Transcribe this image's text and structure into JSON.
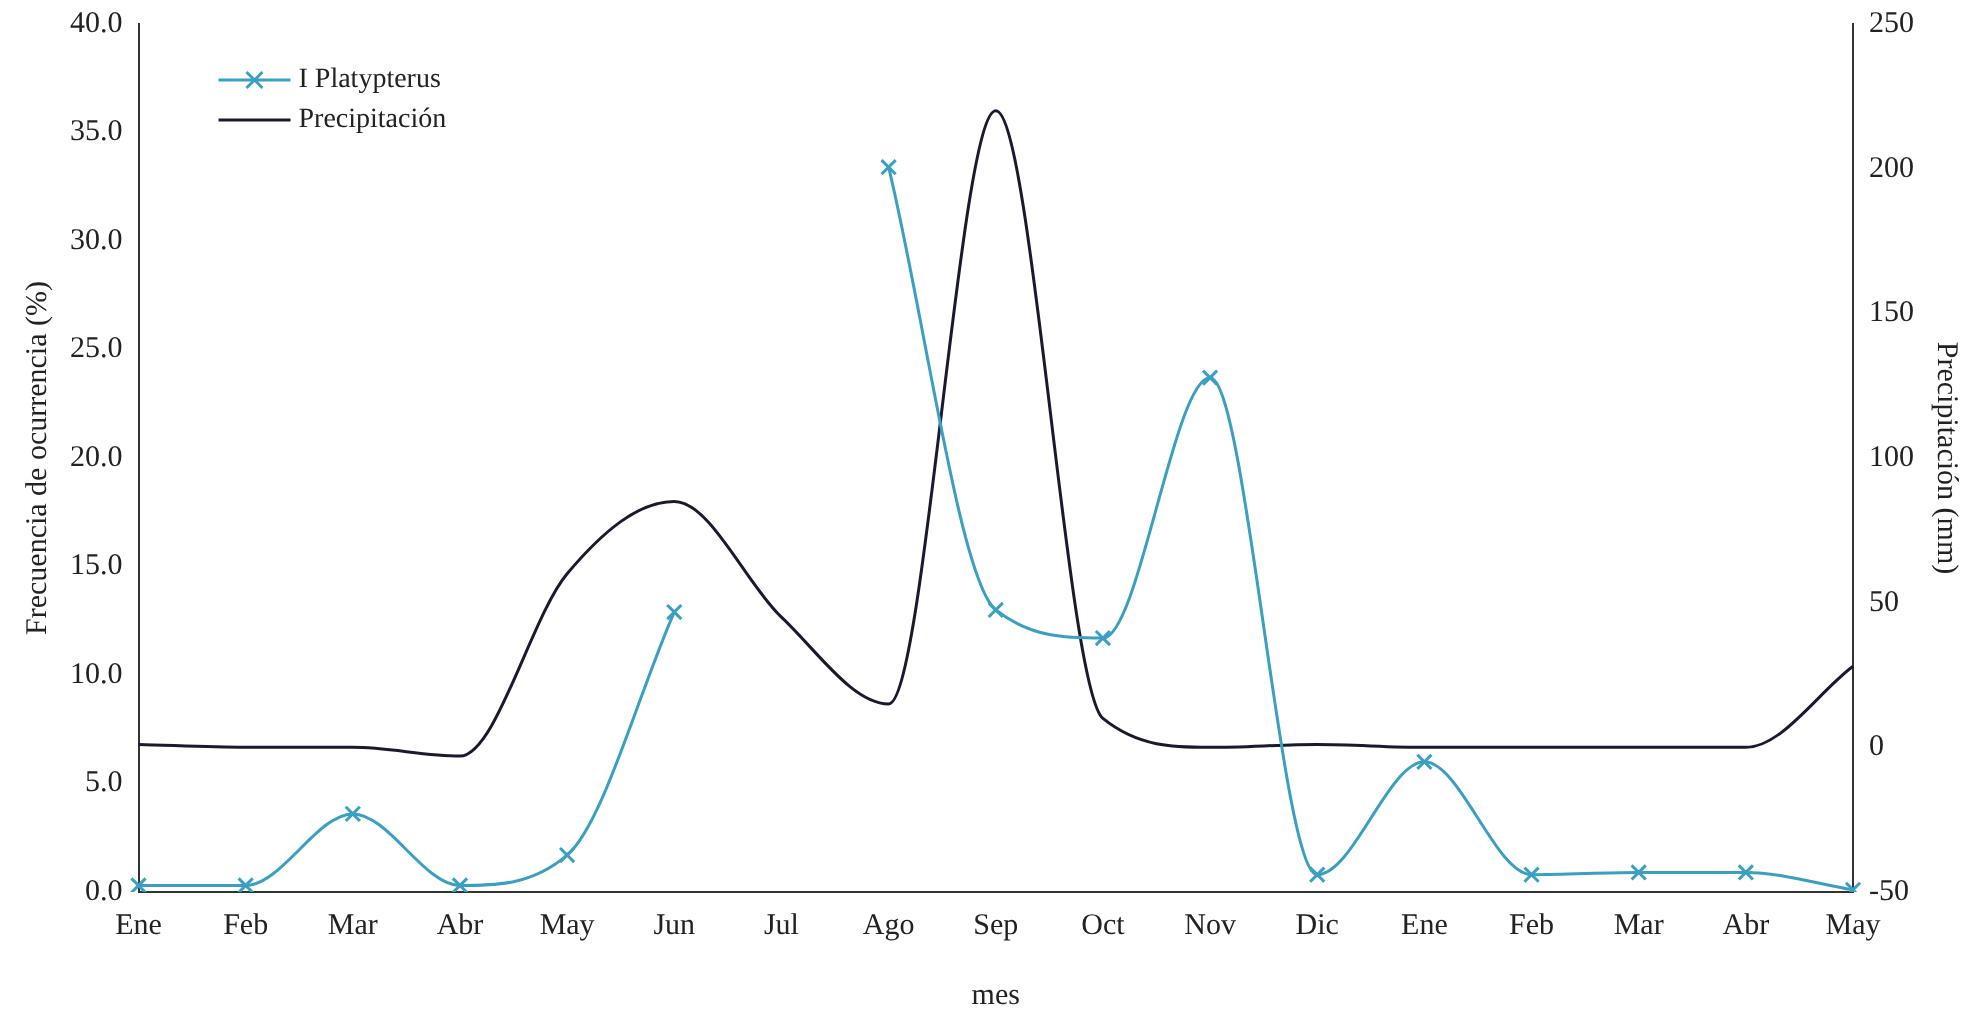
{
  "chart_data": {
    "type": "line",
    "xlabel": "mes",
    "ylabel": "Frecuencia de ocurrencia (%)",
    "y2label": "Precipitación (mm)",
    "categories": [
      "Ene",
      "Feb",
      "Mar",
      "Abr",
      "May",
      "Jun",
      "Jul",
      "Ago",
      "Sep",
      "Oct",
      "Nov",
      "Dic",
      "Ene",
      "Feb",
      "Mar",
      "Abr",
      "May"
    ],
    "series": [
      {
        "name": "I Platypterus",
        "color": "#3a9fc0",
        "marker": "cross",
        "values": [
          0.3,
          0.3,
          3.6,
          0.3,
          1.7,
          12.9,
          null,
          33.4,
          13.0,
          11.7,
          23.7,
          0.8,
          6.0,
          0.8,
          0.9,
          0.9,
          0.1
        ]
      },
      {
        "name": "Precipitación",
        "color": "#1a1a2e",
        "marker": "none",
        "axis": "y2",
        "values": [
          1,
          0,
          0,
          -3,
          60,
          85,
          45,
          15,
          220,
          10,
          0,
          1,
          0,
          0,
          0,
          0,
          28
        ]
      }
    ],
    "ylim": [
      0,
      40
    ],
    "yticks": [
      {
        "value": 0,
        "label": "0.0"
      },
      {
        "value": 5,
        "label": "5.0"
      },
      {
        "value": 10,
        "label": "10.0"
      },
      {
        "value": 15,
        "label": "15.0"
      },
      {
        "value": 20,
        "label": "20.0"
      },
      {
        "value": 25,
        "label": "25.0"
      },
      {
        "value": 30,
        "label": "30.0"
      },
      {
        "value": 35,
        "label": "35.0"
      },
      {
        "value": 40,
        "label": "40.0"
      }
    ],
    "y2lim": [
      -50,
      250
    ],
    "y2ticks": [
      -50,
      0,
      50,
      100,
      150,
      200,
      250
    ],
    "grid": false,
    "legend": "top left",
    "line_style": "solid"
  }
}
